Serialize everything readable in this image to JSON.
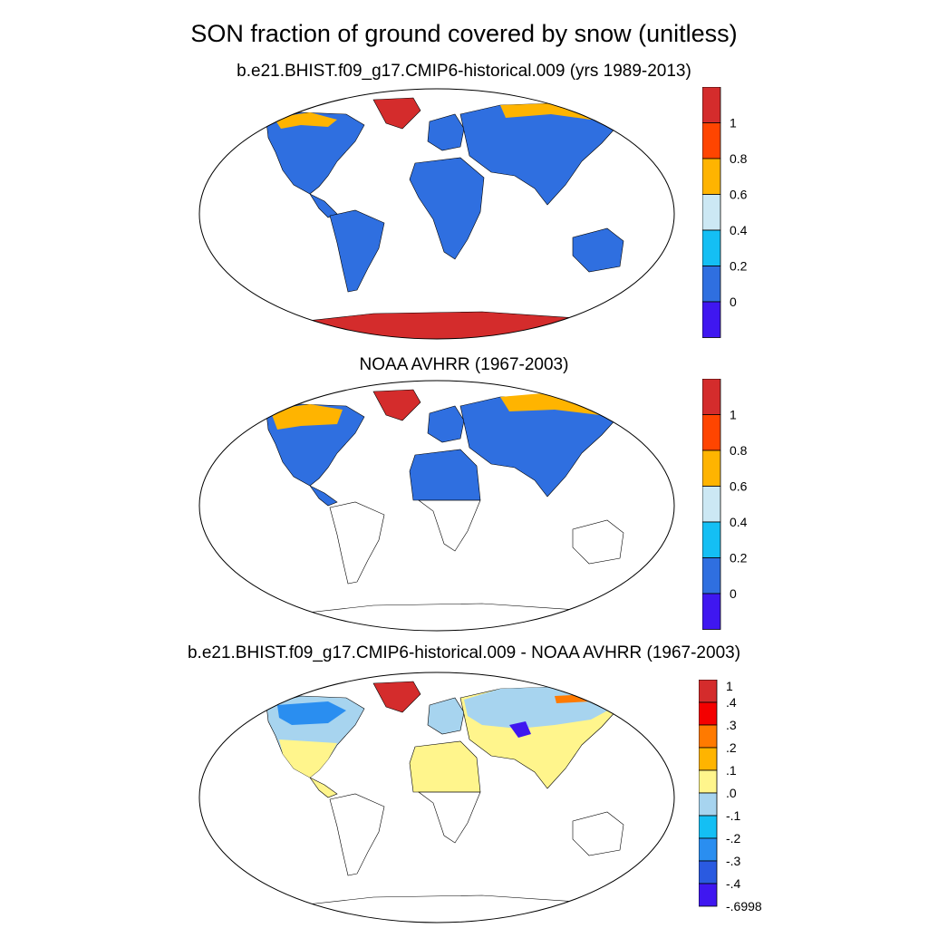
{
  "title": "SON fraction of ground covered by snow (unitless)",
  "panels": [
    {
      "title": "b.e21.BHIST.f09_g17.CMIP6-historical.009 (yrs 1989-2013)",
      "colorbar": {
        "colors": [
          "#d42c2c",
          "#ff4500",
          "#ffb400",
          "#cce8f4",
          "#14bff4",
          "#2f6fe0",
          "#3f17f0"
        ],
        "labels": [
          "1",
          "0.8",
          "0.6",
          "0.4",
          "0.2",
          "0"
        ]
      }
    },
    {
      "title": "NOAA AVHRR (1967-2003)",
      "colorbar": {
        "colors": [
          "#d42c2c",
          "#ff4500",
          "#ffb400",
          "#cce8f4",
          "#14bff4",
          "#2f6fe0",
          "#3f17f0"
        ],
        "labels": [
          "1",
          "0.8",
          "0.6",
          "0.4",
          "0.2",
          "0"
        ]
      }
    },
    {
      "title": "b.e21.BHIST.f09_g17.CMIP6-historical.009 - NOAA AVHRR (1967-2003)",
      "colorbar": {
        "colors": [
          "#d42c2c",
          "#f40000",
          "#ff7a00",
          "#ffb400",
          "#fff58c",
          "#a7d4ef",
          "#14bff4",
          "#2a8ef0",
          "#2a5ae0",
          "#3f17f0"
        ],
        "labels": [
          "1",
          ".4",
          ".3",
          ".2",
          ".1",
          ".0",
          "-.1",
          "-.2",
          "-.3",
          "-.4",
          "-.6998"
        ]
      }
    }
  ]
}
